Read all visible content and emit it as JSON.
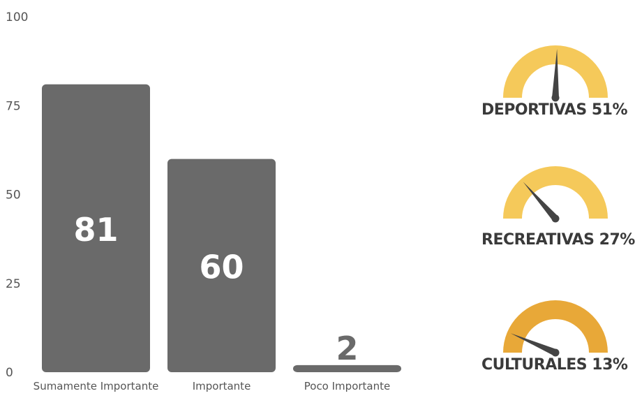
{
  "chart_data": [
    {
      "type": "bar",
      "categories": [
        "Sumamente Importante",
        "Importante",
        "Poco Importante"
      ],
      "values": [
        81,
        60,
        2
      ],
      "data_labels": [
        "81",
        "60",
        "2"
      ],
      "ylim": [
        0,
        100
      ],
      "yticks": [
        "0",
        "25",
        "50",
        "75",
        "100"
      ],
      "grid": false,
      "bar_color": "#6a6a6a",
      "label_color": "#ffffff",
      "small_label_color": "#6a6a6a"
    },
    {
      "type": "gauge",
      "series": [
        {
          "label": "DEPORTIVAS 51%",
          "value": 51,
          "color": "#f5c95a"
        },
        {
          "label": "RECREATIVAS 27%",
          "value": 27,
          "color": "#f5c95a"
        },
        {
          "label": "CULTURALES 13%",
          "value": 13,
          "color": "#e8a838"
        }
      ],
      "range": [
        0,
        100
      ],
      "needle_color": "#444444"
    }
  ]
}
